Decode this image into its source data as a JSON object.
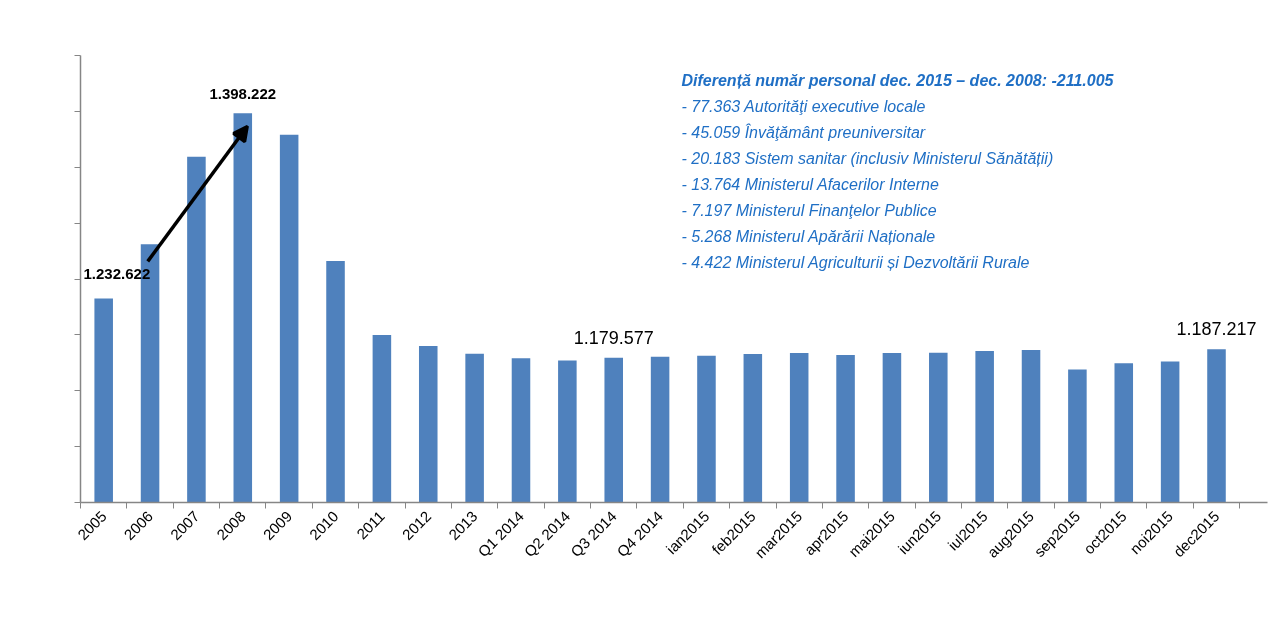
{
  "chart_data": {
    "type": "bar",
    "categories": [
      "2005",
      "2006",
      "2007",
      "2008",
      "2009",
      "2010",
      "2011",
      "2012",
      "2013",
      "Q1 2014",
      "Q2 2014",
      "Q3 2014",
      "Q4 2014",
      "ian2015",
      "feb2015",
      "mar2015",
      "apr2015",
      "mai2015",
      "iun2015",
      "iul2015",
      "aug2015",
      "sep2015",
      "oct2015",
      "noi2015",
      "dec2015"
    ],
    "values": [
      1232622,
      1281000,
      1359500,
      1398222,
      1379000,
      1266000,
      1200000,
      1190000,
      1183000,
      1179000,
      1177000,
      1179577,
      1180500,
      1181400,
      1182900,
      1183800,
      1182000,
      1183800,
      1184100,
      1185600,
      1186500,
      1169000,
      1174700,
      1176200,
      1187217
    ],
    "value_labels": [
      "1.232.622",
      null,
      null,
      "1.398.222",
      null,
      null,
      null,
      null,
      null,
      null,
      null,
      "1.179.577",
      null,
      null,
      null,
      null,
      null,
      null,
      null,
      null,
      null,
      null,
      null,
      null,
      "1.187.217"
    ],
    "color": "#4f81bd",
    "ylim": [
      1050000,
      1450000
    ],
    "yticks": [
      {
        "value": 1050000,
        "label": null
      },
      {
        "value": 1100000,
        "label": null
      },
      {
        "value": 1150000,
        "label": null
      },
      {
        "value": 1200000,
        "label": null
      },
      {
        "value": 1250000,
        "label": null
      },
      {
        "value": 1300000,
        "label": null
      },
      {
        "value": 1350000,
        "label": null
      },
      {
        "value": 1400000,
        "label": null
      },
      {
        "value": 1450000,
        "label": null
      }
    ],
    "tick_labels": "x",
    "grid": false,
    "annotations": [
      "Diferență număr personal dec. 2015 – dec. 2008: -211.005",
      "- 77.363 Autorităţi executive locale",
      "- 45.059  Învăţământ preuniversitar",
      "- 20.183 Sistem sanitar (inclusiv Ministerul Sănătății)",
      "- 13.764 Ministerul Afacerilor Interne",
      "- 7.197 Ministerul Finanţelor Publice",
      "- 5.268  Ministerul Apărării Naționale",
      "- 4.422 Ministerul Agriculturii și Dezvoltării Rurale"
    ]
  }
}
